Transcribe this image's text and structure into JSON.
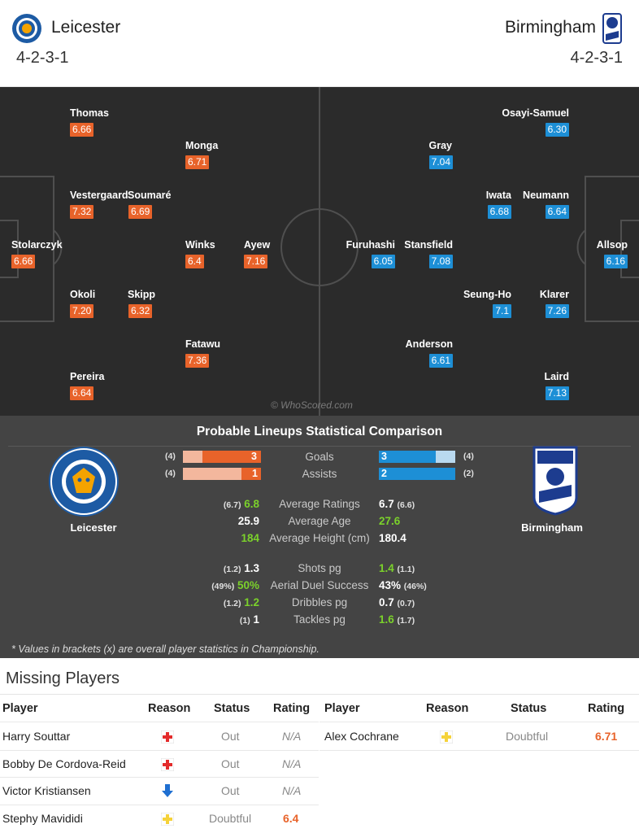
{
  "header": {
    "home_team": "Leicester",
    "away_team": "Birmingham",
    "home_formation": "4-2-3-1",
    "away_formation": "4-2-3-1"
  },
  "pitch": {
    "watermark": "© WhoScored.com",
    "home_players": [
      {
        "name": "Thomas",
        "rating": "6.66"
      },
      {
        "name": "Monga",
        "rating": "6.71"
      },
      {
        "name": "Vestergaard",
        "rating": "7.32"
      },
      {
        "name": "Soumaré",
        "rating": "6.69"
      },
      {
        "name": "Stolarczyk",
        "rating": "6.66"
      },
      {
        "name": "Winks",
        "rating": "6.4"
      },
      {
        "name": "Ayew",
        "rating": "7.16"
      },
      {
        "name": "Okoli",
        "rating": "7.20"
      },
      {
        "name": "Skipp",
        "rating": "6.32"
      },
      {
        "name": "Fatawu",
        "rating": "7.36"
      },
      {
        "name": "Pereira",
        "rating": "6.64"
      }
    ],
    "away_players": [
      {
        "name": "Osayi-Samuel",
        "rating": "6.30"
      },
      {
        "name": "Gray",
        "rating": "7.04"
      },
      {
        "name": "Iwata",
        "rating": "6.68"
      },
      {
        "name": "Neumann",
        "rating": "6.64"
      },
      {
        "name": "Furuhashi",
        "rating": "6.05"
      },
      {
        "name": "Stansfield",
        "rating": "7.08"
      },
      {
        "name": "Allsop",
        "rating": "6.16"
      },
      {
        "name": "Seung-Ho",
        "rating": "7.1"
      },
      {
        "name": "Klarer",
        "rating": "7.26"
      },
      {
        "name": "Anderson",
        "rating": "6.61"
      },
      {
        "name": "Laird",
        "rating": "7.13"
      }
    ]
  },
  "comparison": {
    "title": "Probable Lineups Statistical Comparison",
    "home_name": "Leicester",
    "away_name": "Birmingham",
    "bars": [
      {
        "label": "Goals",
        "home": "3",
        "away": "3",
        "home_count": "(4)",
        "away_count": "(4)"
      },
      {
        "label": "Assists",
        "home": "1",
        "away": "2",
        "home_count": "(4)",
        "away_count": "(2)"
      }
    ],
    "rows": [
      {
        "label": "Average Ratings",
        "home_brk": "(6.7)",
        "home": "6.8",
        "away": "6.7",
        "away_brk": "(6.6)",
        "better": "home"
      },
      {
        "label": "Average Age",
        "home_brk": "",
        "home": "25.9",
        "away": "27.6",
        "away_brk": "",
        "better": "away"
      },
      {
        "label": "Average Height (cm)",
        "home_brk": "",
        "home": "184",
        "away": "180.4",
        "away_brk": "",
        "better": "home"
      },
      {
        "label": "Shots pg",
        "home_brk": "(1.2)",
        "home": "1.3",
        "away": "1.4",
        "away_brk": "(1.1)",
        "better": "away"
      },
      {
        "label": "Aerial Duel Success",
        "home_brk": "(49%)",
        "home": "50%",
        "away": "43%",
        "away_brk": "(46%)",
        "better": "home"
      },
      {
        "label": "Dribbles pg",
        "home_brk": "(1.2)",
        "home": "1.2",
        "away": "0.7",
        "away_brk": "(0.7)",
        "better": "home"
      },
      {
        "label": "Tackles pg",
        "home_brk": "(1)",
        "home": "1",
        "away": "1.6",
        "away_brk": "(1.7)",
        "better": "away"
      }
    ],
    "note": "* Values in brackets (x) are overall player statistics in Championship."
  },
  "missing": {
    "title": "Missing Players",
    "headers": {
      "player": "Player",
      "reason": "Reason",
      "status": "Status",
      "rating": "Rating"
    },
    "home": [
      {
        "player": "Harry Souttar",
        "reason": "injury-icon",
        "status": "Out",
        "rating": "N/A"
      },
      {
        "player": "Bobby De Cordova-Reid",
        "reason": "injury-icon",
        "status": "Out",
        "rating": "N/A"
      },
      {
        "player": "Victor Kristiansen",
        "reason": "loan-arrow-icon",
        "status": "Out",
        "rating": "N/A"
      },
      {
        "player": "Stephy Mavididi",
        "reason": "doubtful-icon",
        "status": "Doubtful",
        "rating": "6.4"
      }
    ],
    "away": [
      {
        "player": "Alex Cochrane",
        "reason": "doubtful-icon",
        "status": "Doubtful",
        "rating": "6.71"
      }
    ]
  },
  "colors": {
    "home_rating": "#e8632a",
    "away_rating": "#1d8fd6",
    "pitch": "#2b2b2b",
    "panel": "#444444",
    "better_value": "#7bd12b"
  }
}
